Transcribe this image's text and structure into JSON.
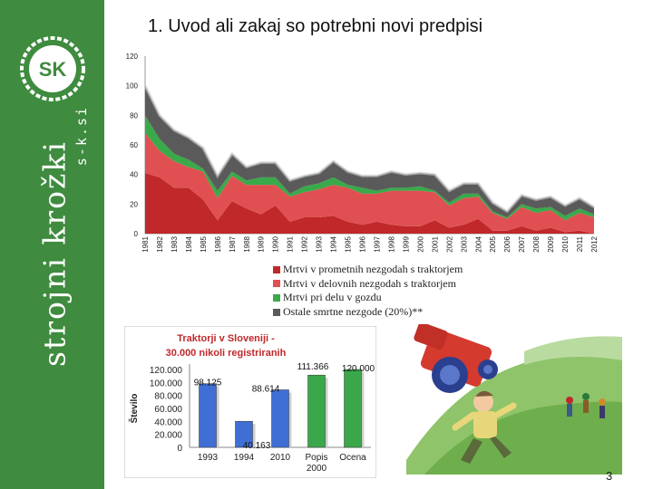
{
  "slide": {
    "title": "1. Uvod ali zakaj so potrebni novi predpisi",
    "page_number": "3"
  },
  "brand": {
    "logo_text": "SK",
    "name": "strojni krožki",
    "domain": "s-k.si",
    "color": "#3f8b3f"
  },
  "chart_data": [
    {
      "type": "area",
      "stacked": true,
      "x": [
        "1981",
        "1982",
        "1983",
        "1984",
        "1985",
        "1986",
        "1987",
        "1988",
        "1989",
        "1990",
        "1991",
        "1992",
        "1993",
        "1994",
        "1995",
        "1996",
        "1997",
        "1998",
        "1999",
        "2000",
        "2001",
        "2002",
        "2003",
        "2004",
        "2005",
        "2006",
        "2007",
        "2008",
        "2009",
        "2010",
        "2011",
        "2012"
      ],
      "ylim": [
        0,
        120
      ],
      "yticks": [
        0,
        20,
        40,
        60,
        80,
        100,
        120
      ],
      "grid": false,
      "legend_position": "bottom",
      "series": [
        {
          "name": "Mrtvi v prometnih nezgodah s traktorjem",
          "color": "#c0282a",
          "values": [
            41,
            38,
            31,
            31,
            23,
            9,
            22,
            17,
            13,
            19,
            8,
            11,
            11,
            12,
            8,
            6,
            8,
            6,
            5,
            5,
            9,
            4,
            6,
            10,
            2,
            2,
            5,
            2,
            4,
            1,
            2,
            0
          ]
        },
        {
          "name": "Mrtvi v delovnih nezgodah s traktorjem",
          "color": "#e05052",
          "values": [
            27,
            18,
            18,
            14,
            19,
            15,
            17,
            16,
            20,
            14,
            17,
            17,
            19,
            21,
            23,
            21,
            19,
            23,
            24,
            24,
            19,
            15,
            18,
            15,
            12,
            8,
            13,
            12,
            12,
            8,
            12,
            11
          ]
        },
        {
          "name": "Mrtvi pri delu v gozdu",
          "color": "#3aa94a",
          "values": [
            12,
            8,
            5,
            5,
            2,
            5,
            3,
            3,
            5,
            5,
            2,
            4,
            4,
            5,
            2,
            4,
            2,
            2,
            2,
            3,
            1,
            2,
            3,
            2,
            1,
            1,
            2,
            3,
            2,
            3,
            3,
            2
          ]
        },
        {
          "name": "Ostale smrtne nezgode (20%)**",
          "color": "#5a5a5a",
          "values": [
            20,
            16,
            16,
            15,
            14,
            10,
            12,
            9,
            10,
            10,
            9,
            7,
            7,
            11,
            9,
            8,
            10,
            11,
            9,
            9,
            11,
            8,
            7,
            7,
            6,
            4,
            6,
            6,
            7,
            7,
            7,
            5
          ]
        }
      ]
    },
    {
      "type": "bar",
      "title": "Traktorji v Sloveniji - 30.000 nikoli registriranih",
      "ylabel": "Število",
      "categories": [
        "1993",
        "1994",
        "2010",
        "Popis 2000",
        "Ocena"
      ],
      "values": [
        98125,
        40163,
        88614,
        111366,
        120000
      ],
      "data_labels": [
        "98.125",
        "40.163",
        "88.614",
        "111.366",
        "120.000"
      ],
      "colors": [
        "#3f6fd4",
        "#3f6fd4",
        "#3f6fd4",
        "#3aa84a",
        "#3aa84a"
      ],
      "ylim": [
        0,
        120000
      ],
      "yticks": [
        "0",
        "20.000",
        "40.000",
        "60.000",
        "80.000",
        "100.000",
        "120.000"
      ],
      "title_color": "#c0282a"
    }
  ],
  "illustration": {
    "subject": "cartoon of an overturned red tractor and a startled farmer running",
    "icon": "overturned-tractor-illustration"
  }
}
